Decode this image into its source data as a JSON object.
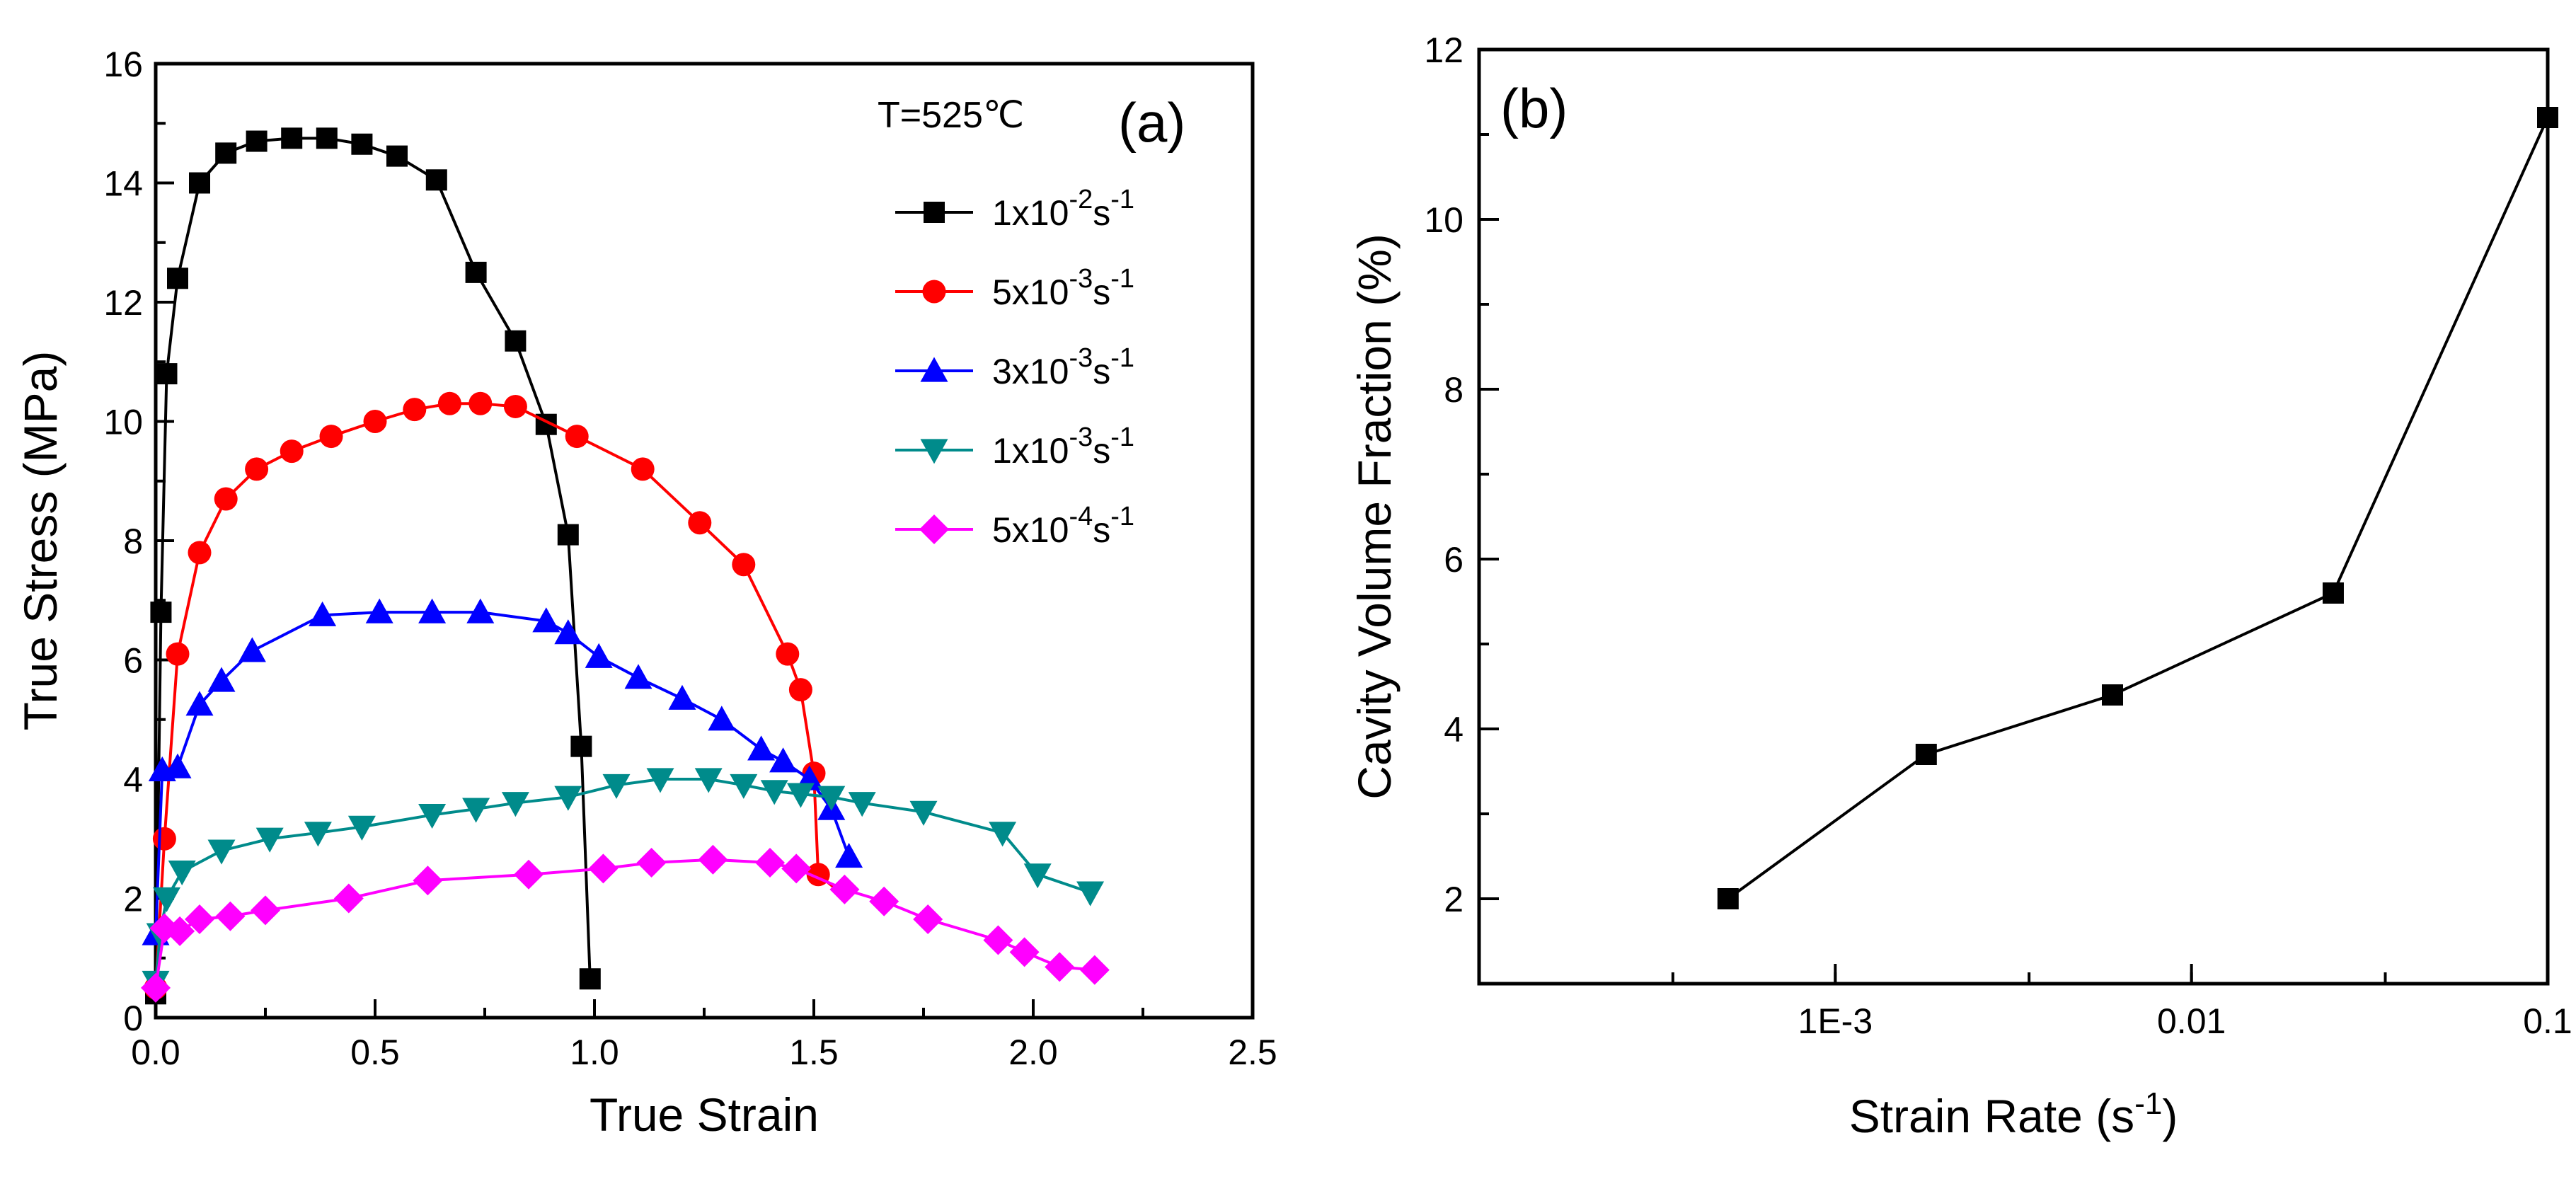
{
  "chart_data": [
    {
      "id": "a",
      "type": "line",
      "panel_label": "(a)",
      "annotation": "T=525℃",
      "xlabel": "True Strain",
      "ylabel": "True Stress (MPa)",
      "xlim": [
        0,
        2.5
      ],
      "ylim": [
        0,
        16
      ],
      "xticks": [
        0,
        0.5,
        1.0,
        1.5,
        2.0,
        2.5
      ],
      "xtick_labels": [
        "0.0",
        "0.5",
        "1.0",
        "1.5",
        "2.0",
        "2.5"
      ],
      "yticks": [
        0,
        2,
        4,
        6,
        8,
        10,
        12,
        14,
        16
      ],
      "ytick_labels": [
        "0",
        "2",
        "4",
        "6",
        "8",
        "10",
        "12",
        "14",
        "16"
      ],
      "legend_position": "top-right",
      "series": [
        {
          "name": "1x10-2s-1",
          "label_base": "1x10",
          "label_exp": "-2",
          "label_unit": "s",
          "label_unit_exp": "-1",
          "color": "#000000",
          "marker": "square",
          "x": [
            0.0,
            0.012,
            0.025,
            0.05,
            0.1,
            0.16,
            0.23,
            0.31,
            0.39,
            0.47,
            0.55,
            0.64,
            0.73,
            0.82,
            0.89,
            0.94,
            0.97,
            0.99
          ],
          "y": [
            0.4,
            6.8,
            10.8,
            12.4,
            14.0,
            14.5,
            14.7,
            14.75,
            14.75,
            14.65,
            14.45,
            14.05,
            12.5,
            11.35,
            9.95,
            8.1,
            4.55,
            0.65
          ]
        },
        {
          "name": "5x10-3s-1",
          "label_base": "5x10",
          "label_exp": "-3",
          "label_unit": "s",
          "label_unit_exp": "-1",
          "color": "#ff0000",
          "marker": "circle",
          "x": [
            0.0,
            0.02,
            0.05,
            0.1,
            0.16,
            0.23,
            0.31,
            0.4,
            0.5,
            0.59,
            0.67,
            0.74,
            0.82,
            0.96,
            1.11,
            1.24,
            1.34,
            1.44,
            1.47,
            1.5,
            1.51
          ],
          "y": [
            0.5,
            3.0,
            6.1,
            7.8,
            8.7,
            9.2,
            9.5,
            9.75,
            10.0,
            10.2,
            10.3,
            10.3,
            10.25,
            9.75,
            9.2,
            8.3,
            7.6,
            6.1,
            5.5,
            4.1,
            2.4
          ],
          "extra_line_x": [
            1.51,
            1.56
          ],
          "extra_line_y": [
            2.4,
            2.1
          ]
        },
        {
          "name": "3x10-3s-1",
          "label_base": "3x10",
          "label_exp": "-3",
          "label_unit": "s",
          "label_unit_exp": "-1",
          "color": "#0000ff",
          "marker": "triangle-up",
          "x": [
            0.0,
            0.015,
            0.05,
            0.1,
            0.15,
            0.22,
            0.38,
            0.51,
            0.63,
            0.74,
            0.89,
            0.94,
            1.01,
            1.1,
            1.2,
            1.29,
            1.38,
            1.43,
            1.49,
            1.54,
            1.58
          ],
          "y": [
            1.4,
            4.15,
            4.2,
            5.25,
            5.65,
            6.15,
            6.75,
            6.8,
            6.8,
            6.8,
            6.65,
            6.45,
            6.05,
            5.7,
            5.35,
            5.0,
            4.5,
            4.3,
            4.0,
            3.5,
            2.7
          ]
        },
        {
          "name": "1x10-3s-1",
          "label_base": "1x10",
          "label_exp": "-3",
          "label_unit": "s",
          "label_unit_exp": "-1",
          "color": "#008b8b",
          "marker": "triangle-down",
          "x": [
            0.0,
            0.01,
            0.025,
            0.06,
            0.15,
            0.26,
            0.37,
            0.47,
            0.63,
            0.73,
            0.82,
            0.94,
            1.05,
            1.15,
            1.26,
            1.34,
            1.41,
            1.47,
            1.54,
            1.61,
            1.75,
            1.93,
            2.01,
            2.13
          ],
          "y": [
            0.6,
            1.4,
            2.0,
            2.45,
            2.8,
            3.0,
            3.1,
            3.2,
            3.4,
            3.5,
            3.6,
            3.7,
            3.9,
            4.0,
            4.0,
            3.9,
            3.8,
            3.75,
            3.7,
            3.6,
            3.45,
            3.1,
            2.4,
            2.1
          ]
        },
        {
          "name": "5x10-4s-1",
          "label_base": "5x10",
          "label_exp": "-4",
          "label_unit": "s",
          "label_unit_exp": "-1",
          "color": "#ff00ff",
          "marker": "diamond",
          "x": [
            0.0,
            0.02,
            0.055,
            0.1,
            0.17,
            0.25,
            0.44,
            0.62,
            0.85,
            1.02,
            1.13,
            1.27,
            1.4,
            1.46,
            1.57,
            1.66,
            1.76,
            1.92,
            1.98,
            2.06,
            2.14
          ],
          "y": [
            0.5,
            1.5,
            1.45,
            1.65,
            1.7,
            1.8,
            2.0,
            2.3,
            2.4,
            2.5,
            2.6,
            2.65,
            2.6,
            2.5,
            2.15,
            1.95,
            1.65,
            1.3,
            1.1,
            0.85,
            0.8
          ]
        }
      ]
    },
    {
      "id": "b",
      "type": "line",
      "panel_label": "(b)",
      "xlabel": "Strain Rate (s-1)",
      "xlabel_base": "Strain Rate (s",
      "xlabel_exp": "-1",
      "xlabel_tail": ")",
      "ylabel": "Cavity Volume Fraction (%)",
      "xscale": "log",
      "xlim": [
        0.0001,
        0.1
      ],
      "ylim": [
        1,
        12
      ],
      "xticks": [
        0.001,
        0.01,
        0.1
      ],
      "xtick_labels": [
        "1E-3",
        "0.01",
        "0.1"
      ],
      "xminor_ticks": [
        0.00035,
        0.001,
        0.0035,
        0.01,
        0.035
      ],
      "yticks": [
        2,
        4,
        6,
        8,
        10,
        12
      ],
      "ytick_labels": [
        "2",
        "4",
        "6",
        "8",
        "10",
        "12"
      ],
      "series": [
        {
          "name": "cavity volume fraction",
          "color": "#000000",
          "marker": "square",
          "x": [
            0.0005,
            0.0018,
            0.006,
            0.025,
            0.1
          ],
          "y": [
            2.0,
            3.7,
            4.4,
            5.6,
            11.2
          ]
        }
      ]
    }
  ]
}
